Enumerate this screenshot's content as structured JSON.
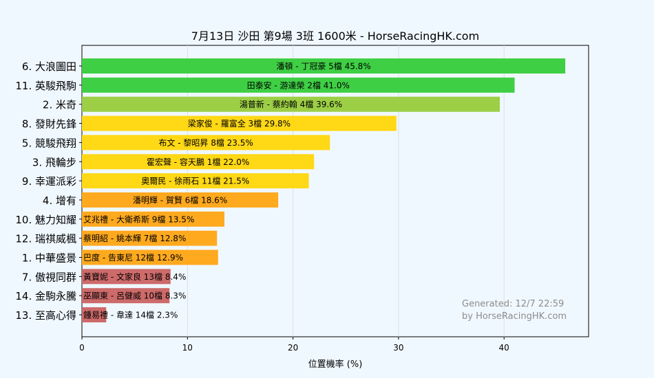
{
  "chart_data": {
    "type": "bar",
    "orientation": "horizontal",
    "title": "7月13日  沙田  第9場  3班  1600米 - HorseRacingHK.com",
    "xlabel": "位置機率 (%)",
    "ylabel": "",
    "xlim": [
      0,
      48
    ],
    "xticks": [
      "0",
      "10",
      "20",
      "30",
      "40"
    ],
    "grid": true,
    "categories": [
      "6. 大浪圖田",
      "11. 英駿飛駒",
      "2. 米奇",
      "8. 發財先鋒",
      "5. 競駿飛翔",
      "3. 飛輪步",
      "9. 幸運派彩",
      "4. 增有",
      "10. 魅力知耀",
      "12. 瑞祺威楓",
      "1. 中華盛景",
      "7. 傲視同群",
      "14. 金駒永騰",
      "13. 至高心得"
    ],
    "values": [
      45.8,
      41.0,
      39.6,
      29.8,
      23.5,
      22.0,
      21.5,
      18.6,
      13.5,
      12.8,
      12.9,
      8.4,
      8.3,
      2.3
    ],
    "labels": [
      "潘頓 - 丁冠豪 5檔  45.8%",
      "田泰安 - 游達榮 2檔  41.0%",
      "湯普新 - 蔡約翰 4檔  39.6%",
      "梁家俊 - 羅富全 3檔  29.8%",
      "布文 - 黎昭昇 8檔  23.5%",
      "霍宏聲 - 容天鵬 1檔  22.0%",
      "奧爾民 - 徐雨石 11檔  21.5%",
      "潘明輝 - 賀賢 6檔  18.6%",
      "艾兆禮 - 大衛希斯 9檔  13.5%",
      "蔡明紹 - 姚本輝 7檔  12.8%",
      "巴度 - 告東尼 12檔  12.9%",
      "黃寶妮 - 文家良 13檔  8.4%",
      "巫顯東 - 呂健威 10檔  8.3%",
      "鍾易禮 - 韋達 14檔  2.3%"
    ],
    "colors": [
      "#3fcf45",
      "#3fcf45",
      "#9ccf45",
      "#ffd816",
      "#ffd816",
      "#ffd816",
      "#ffd816",
      "#ffa91f",
      "#ffa91f",
      "#ffa91f",
      "#ffa91f",
      "#cd6a6a",
      "#cd6a6a",
      "#cd6a6a"
    ],
    "watermark": [
      "Generated: 12/7 22:59",
      "by HorseRacingHK.com"
    ]
  }
}
